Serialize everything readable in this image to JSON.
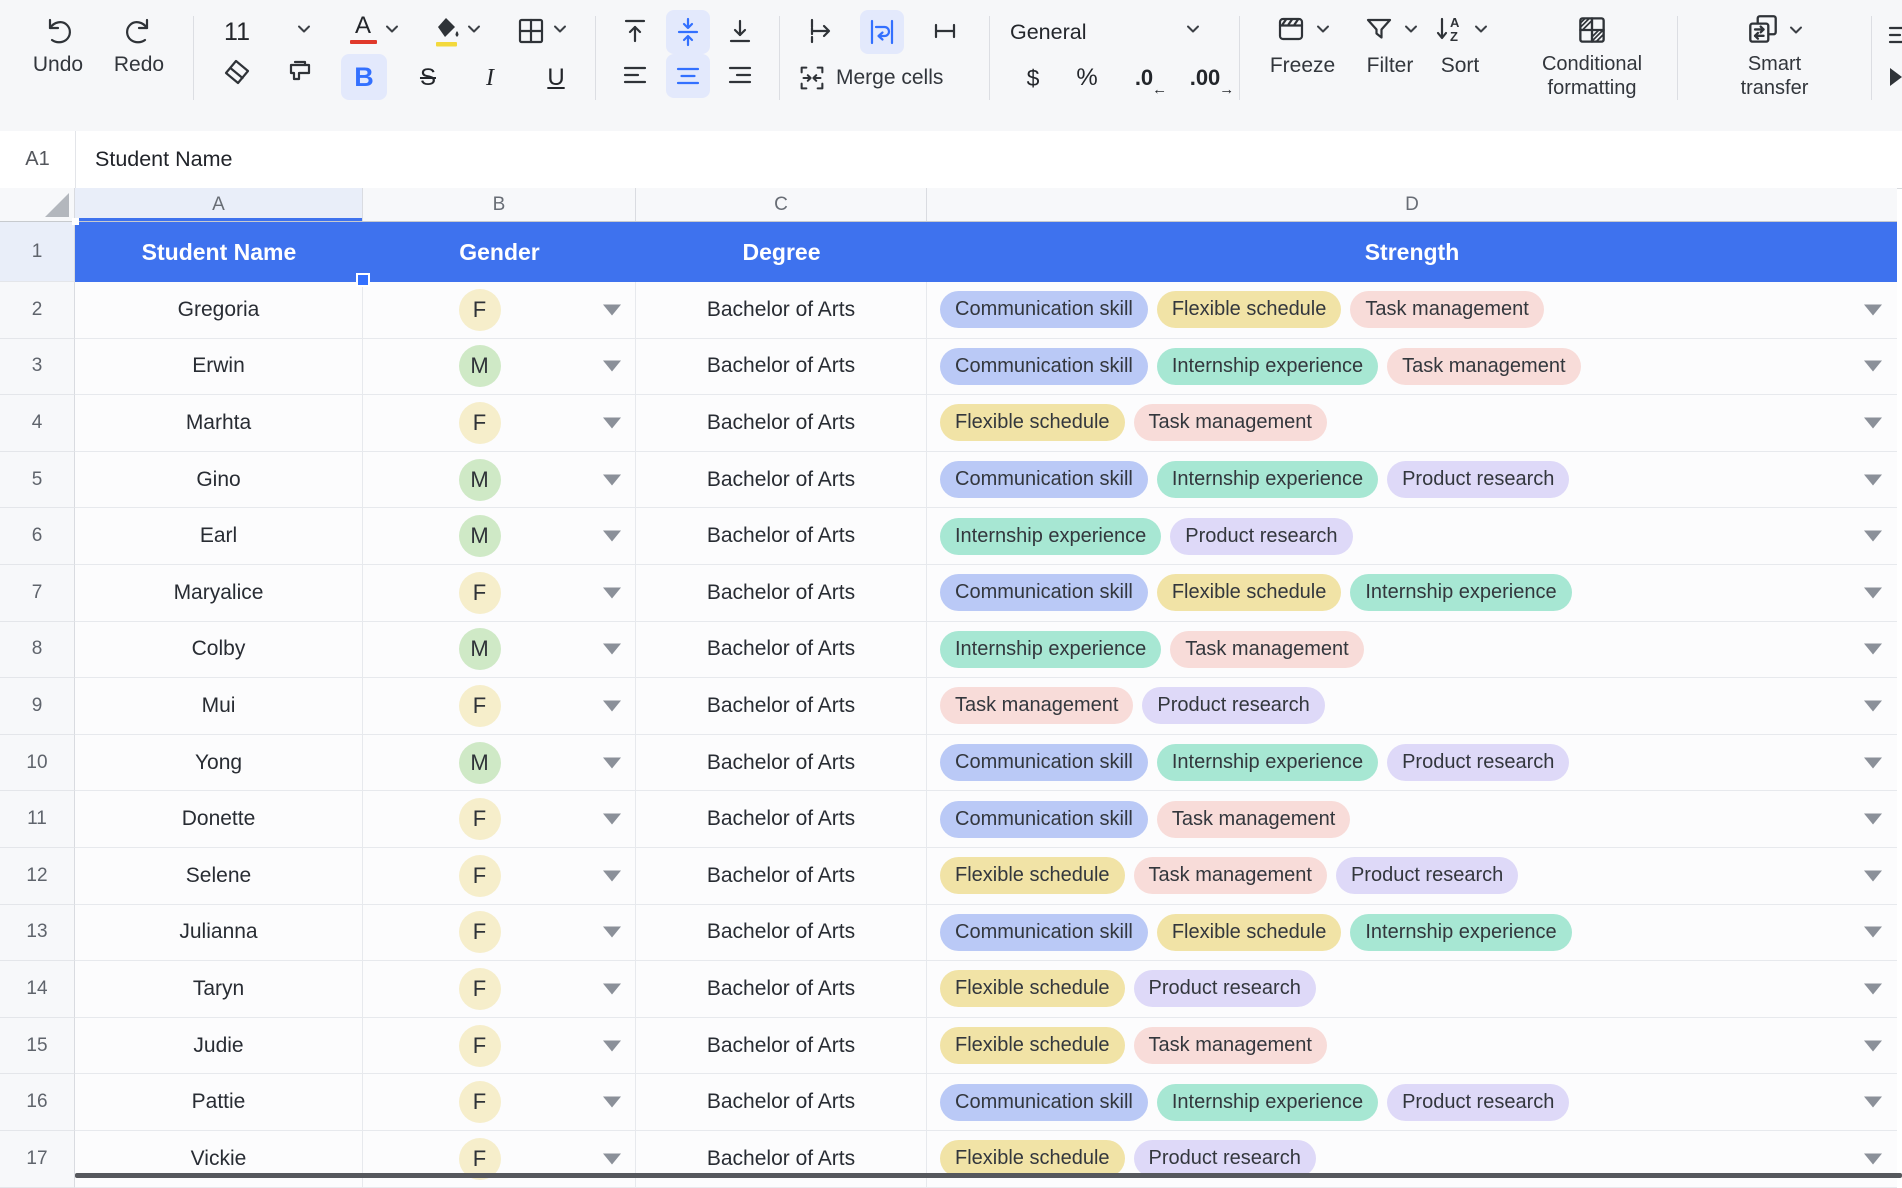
{
  "toolbar": {
    "undo": "Undo",
    "redo": "Redo",
    "font_size": "11",
    "font_color_letter": "A",
    "bold": "B",
    "strikethrough": "S",
    "italic": "I",
    "underline": "U",
    "merge_cells": "Merge cells",
    "number_format": "General",
    "currency": "$",
    "percent": "%",
    "decrease_decimal": ".0",
    "decrease_arrow": "←",
    "increase_decimal": ".00",
    "increase_arrow": "→",
    "freeze": "Freeze",
    "filter": "Filter",
    "sort": "Sort",
    "sort_a": "A",
    "sort_z": "Z",
    "conditional_line1": "Conditional",
    "conditional_line2": "formatting",
    "smart_line1": "Smart",
    "smart_line2": "transfer"
  },
  "formula_bar": {
    "cell_ref": "A1",
    "value": "Student Name"
  },
  "grid": {
    "column_letters": [
      "A",
      "B",
      "C",
      "D"
    ],
    "headers": [
      "Student Name",
      "Gender",
      "Degree",
      "Strength"
    ],
    "rows": [
      {
        "n": 2,
        "name": "Gregoria",
        "gender": "F",
        "degree": "Bachelor of Arts",
        "strengths": [
          "Communication skill",
          "Flexible schedule",
          "Task management"
        ]
      },
      {
        "n": 3,
        "name": "Erwin",
        "gender": "M",
        "degree": "Bachelor of Arts",
        "strengths": [
          "Communication skill",
          "Internship experience",
          "Task management"
        ]
      },
      {
        "n": 4,
        "name": "Marhta",
        "gender": "F",
        "degree": "Bachelor of Arts",
        "strengths": [
          "Flexible schedule",
          "Task management"
        ]
      },
      {
        "n": 5,
        "name": "Gino",
        "gender": "M",
        "degree": "Bachelor of Arts",
        "strengths": [
          "Communication skill",
          "Internship experience",
          "Product research"
        ]
      },
      {
        "n": 6,
        "name": "Earl",
        "gender": "M",
        "degree": "Bachelor of Arts",
        "strengths": [
          "Internship experience",
          "Product research"
        ]
      },
      {
        "n": 7,
        "name": "Maryalice",
        "gender": "F",
        "degree": "Bachelor of Arts",
        "strengths": [
          "Communication skill",
          "Flexible schedule",
          "Internship experience"
        ]
      },
      {
        "n": 8,
        "name": "Colby",
        "gender": "M",
        "degree": "Bachelor of Arts",
        "strengths": [
          "Internship experience",
          "Task management"
        ]
      },
      {
        "n": 9,
        "name": "Mui",
        "gender": "F",
        "degree": "Bachelor of Arts",
        "strengths": [
          "Task management",
          "Product research"
        ]
      },
      {
        "n": 10,
        "name": "Yong",
        "gender": "M",
        "degree": "Bachelor of Arts",
        "strengths": [
          "Communication skill",
          "Internship experience",
          "Product research"
        ]
      },
      {
        "n": 11,
        "name": "Donette",
        "gender": "F",
        "degree": "Bachelor of Arts",
        "strengths": [
          "Communication skill",
          "Task management"
        ]
      },
      {
        "n": 12,
        "name": "Selene",
        "gender": "F",
        "degree": "Bachelor of Arts",
        "strengths": [
          "Flexible schedule",
          "Task management",
          "Product research"
        ]
      },
      {
        "n": 13,
        "name": "Julianna",
        "gender": "F",
        "degree": "Bachelor of Arts",
        "strengths": [
          "Communication skill",
          "Flexible schedule",
          "Internship experience"
        ]
      },
      {
        "n": 14,
        "name": "Taryn",
        "gender": "F",
        "degree": "Bachelor of Arts",
        "strengths": [
          "Flexible schedule",
          "Product research"
        ]
      },
      {
        "n": 15,
        "name": "Judie",
        "gender": "F",
        "degree": "Bachelor of Arts",
        "strengths": [
          "Flexible schedule",
          "Task management"
        ]
      },
      {
        "n": 16,
        "name": "Pattie",
        "gender": "F",
        "degree": "Bachelor of Arts",
        "strengths": [
          "Communication skill",
          "Internship experience",
          "Product research"
        ]
      },
      {
        "n": 17,
        "name": "Vickie",
        "gender": "F",
        "degree": "Bachelor of Arts",
        "strengths": [
          "Flexible schedule",
          "Product research"
        ]
      }
    ]
  },
  "colors": {
    "header_row_bg": "#3e72ee",
    "accent_blue": "#3370ff",
    "tags": {
      "Communication skill": "#bac9f6",
      "Flexible schedule": "#f1e3a6",
      "Task management": "#f8dcd9",
      "Internship experience": "#a7e7d3",
      "Product research": "#ded9f8"
    },
    "gender": {
      "F": "#f6eecb",
      "M": "#cfe9c6"
    }
  }
}
